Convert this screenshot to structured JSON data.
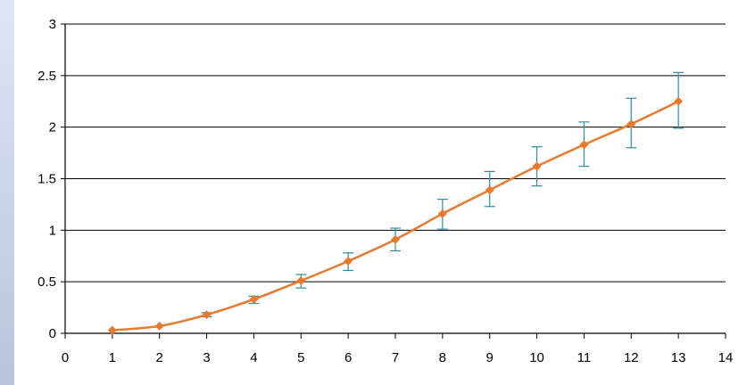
{
  "chart_data": {
    "type": "line",
    "title": "",
    "xlabel": "",
    "ylabel": "",
    "xlim": [
      0,
      14
    ],
    "ylim": [
      0,
      3
    ],
    "x_ticks": [
      "0",
      "1",
      "2",
      "3",
      "4",
      "5",
      "6",
      "7",
      "8",
      "9",
      "10",
      "11",
      "12",
      "13",
      "14"
    ],
    "y_ticks": [
      "0",
      "0.5",
      "1",
      "1.5",
      "2",
      "2.5",
      "3"
    ],
    "grid": "horizontal",
    "legend": "none",
    "series": [
      {
        "x": [
          1,
          2,
          3,
          4,
          5,
          6,
          7,
          8,
          9,
          10,
          11,
          12,
          13
        ],
        "y": [
          0.03,
          0.07,
          0.18,
          0.33,
          0.51,
          0.7,
          0.91,
          1.16,
          1.39,
          1.62,
          1.83,
          2.03,
          2.25
        ],
        "error_low": [
          0.03,
          0.07,
          0.16,
          0.29,
          0.44,
          0.61,
          0.8,
          1.01,
          1.23,
          1.43,
          1.62,
          1.8,
          1.99
        ],
        "error_high": [
          0.03,
          0.07,
          0.2,
          0.36,
          0.57,
          0.78,
          1.02,
          1.3,
          1.57,
          1.81,
          2.05,
          2.28,
          2.53
        ],
        "color": "#e8792f",
        "error_bar_color": "#2a8ea0"
      }
    ]
  }
}
